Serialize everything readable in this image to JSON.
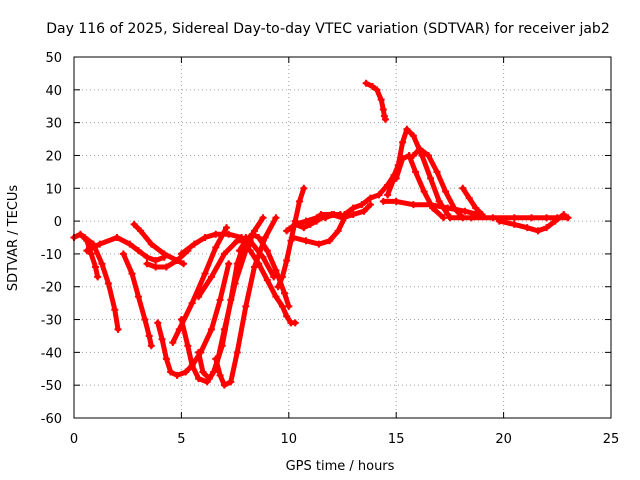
{
  "chart_data": {
    "type": "scatter",
    "title": "Day 116 of 2025, Sidereal Day-to-day VTEC variation (SDTVAR) for receiver jab2",
    "xlabel": "GPS time / hours",
    "ylabel": "SDTVAR / TECUs",
    "xlim": [
      0,
      25
    ],
    "ylim": [
      -60,
      50
    ],
    "xticks": [
      0,
      5,
      10,
      15,
      20,
      25
    ],
    "yticks": [
      -60,
      -50,
      -40,
      -30,
      -20,
      -10,
      0,
      10,
      20,
      30,
      40,
      50
    ],
    "xtick_labels": [
      "0",
      "5",
      "10",
      "15",
      "20",
      "25"
    ],
    "ytick_labels": [
      "-60",
      "-50",
      "-40",
      "-30",
      "-20",
      "-10",
      "0",
      "10",
      "20",
      "30",
      "40",
      "50"
    ],
    "grid": true,
    "marker": "+",
    "color": "#ff0000",
    "series": [
      {
        "name": "arc-1",
        "x": [
          0.0,
          0.3,
          0.6,
          0.8,
          1.0,
          1.1
        ],
        "y": [
          -5,
          -4,
          -6,
          -10,
          -14,
          -17
        ]
      },
      {
        "name": "arc-2",
        "x": [
          0.5,
          0.9,
          1.3,
          1.6,
          1.9,
          2.05
        ],
        "y": [
          -5,
          -7,
          -13,
          -19,
          -27,
          -33
        ]
      },
      {
        "name": "arc-3",
        "x": [
          0.6,
          1.2,
          2.0,
          2.6,
          3.0,
          3.4,
          3.8,
          4.2
        ],
        "y": [
          -9,
          -7,
          -5,
          -7,
          -9,
          -11,
          -12,
          -11
        ]
      },
      {
        "name": "arc-4",
        "x": [
          2.8,
          3.1,
          3.6,
          4.2,
          4.8,
          5.1
        ],
        "y": [
          -1,
          -3,
          -7,
          -10,
          -12,
          -13
        ]
      },
      {
        "name": "arc-5",
        "x": [
          2.3,
          2.7,
          3.0,
          3.3,
          3.5,
          3.6
        ],
        "y": [
          -10,
          -16,
          -23,
          -30,
          -35,
          -38
        ]
      },
      {
        "name": "arc-6",
        "x": [
          3.4,
          3.8,
          4.3,
          4.8,
          5.3
        ],
        "y": [
          -13,
          -14,
          -14,
          -12,
          -9
        ]
      },
      {
        "name": "arc-7",
        "x": [
          3.9,
          4.1,
          4.3,
          4.5,
          4.8,
          5.2,
          5.5,
          5.9,
          6.4,
          6.8,
          7.2
        ],
        "y": [
          -31,
          -36,
          -42,
          -46,
          -47,
          -46,
          -44,
          -40,
          -33,
          -24,
          -13
        ]
      },
      {
        "name": "arc-8",
        "x": [
          5.0,
          5.6,
          6.1,
          6.6,
          7.2,
          7.8,
          8.2
        ],
        "y": [
          -10,
          -7,
          -5,
          -4,
          -4,
          -5,
          -7
        ]
      },
      {
        "name": "arc-9",
        "x": [
          5.0,
          5.3,
          5.5,
          5.8,
          6.2,
          6.5,
          6.9,
          7.3,
          7.6,
          8.0
        ],
        "y": [
          -30,
          -38,
          -44,
          -48,
          -49,
          -46,
          -38,
          -24,
          -13,
          -5
        ]
      },
      {
        "name": "arc-10",
        "x": [
          4.6,
          4.9,
          5.5,
          6.1,
          6.6,
          7.1
        ],
        "y": [
          -37,
          -33,
          -25,
          -16,
          -8,
          -2
        ]
      },
      {
        "name": "arc-11",
        "x": [
          5.8,
          6.0,
          6.3,
          6.6,
          7.0,
          7.5,
          8.0,
          8.4,
          8.8
        ],
        "y": [
          -40,
          -46,
          -48,
          -45,
          -33,
          -19,
          -9,
          -3,
          1
        ]
      },
      {
        "name": "arc-12",
        "x": [
          6.6,
          6.8,
          7.0,
          7.3,
          7.6,
          8.0,
          8.4,
          8.9,
          9.4
        ],
        "y": [
          -42,
          -47,
          -50,
          -49,
          -40,
          -26,
          -14,
          -5,
          1
        ]
      },
      {
        "name": "arc-13",
        "x": [
          5.8,
          6.4,
          7.0,
          7.6,
          8.2,
          8.8,
          9.3
        ],
        "y": [
          -23,
          -17,
          -10,
          -6,
          -6,
          -11,
          -17
        ]
      },
      {
        "name": "arc-14",
        "x": [
          7.7,
          8.0,
          8.3,
          8.6,
          9.0,
          9.4,
          9.8,
          10.0
        ],
        "y": [
          -9,
          -6,
          -4,
          -5,
          -9,
          -15,
          -22,
          -26
        ]
      },
      {
        "name": "arc-15",
        "x": [
          8.2,
          8.6,
          9.0,
          9.4,
          9.7,
          9.9,
          10.1,
          10.3
        ],
        "y": [
          -9,
          -13,
          -18,
          -23,
          -26,
          -29,
          -31,
          -31
        ]
      },
      {
        "name": "arc-16",
        "x": [
          9.5,
          9.7,
          9.9,
          10.1,
          10.3,
          10.5,
          10.7
        ],
        "y": [
          -20,
          -17,
          -12,
          -6,
          0,
          6,
          10
        ]
      },
      {
        "name": "arc-17",
        "x": [
          9.9,
          10.3,
          10.8,
          11.3,
          11.7,
          12.1,
          12.4
        ],
        "y": [
          -3,
          -1,
          0,
          1,
          1,
          2,
          2
        ]
      },
      {
        "name": "arc-18",
        "x": [
          10.2,
          10.8,
          11.4,
          11.9,
          12.3,
          12.6
        ],
        "y": [
          -5,
          -6,
          -7,
          -6,
          -3,
          1
        ]
      },
      {
        "name": "arc-19",
        "x": [
          10.3,
          10.7,
          11.0,
          11.3,
          11.5
        ],
        "y": [
          -1,
          -2,
          -1,
          0,
          1
        ]
      },
      {
        "name": "arc-20",
        "x": [
          11.5,
          12.0,
          12.5,
          13.0,
          13.5,
          13.8
        ],
        "y": [
          2,
          2,
          1,
          2,
          3,
          5
        ]
      },
      {
        "name": "arc-21",
        "x": [
          12.6,
          13.0,
          13.4,
          13.8,
          14.2,
          14.6,
          14.9,
          15.1,
          15.3
        ],
        "y": [
          2,
          4,
          5,
          7,
          8,
          11,
          14,
          17,
          19
        ]
      },
      {
        "name": "arc-22",
        "x": [
          13.6,
          13.9,
          14.1,
          14.3,
          14.4,
          14.45,
          14.5
        ],
        "y": [
          42,
          41,
          40,
          37,
          34,
          32,
          31
        ]
      },
      {
        "name": "arc-23",
        "x": [
          14.6,
          14.9,
          15.1,
          15.3,
          15.5,
          15.8,
          16.2,
          16.6,
          17.0,
          17.4
        ],
        "y": [
          8,
          13,
          17,
          24,
          28,
          26,
          20,
          13,
          6,
          2
        ]
      },
      {
        "name": "arc-24",
        "x": [
          15.0,
          15.3,
          15.6,
          15.9,
          16.3,
          16.7,
          17.2
        ],
        "y": [
          13,
          19,
          20,
          15,
          9,
          4,
          1
        ]
      },
      {
        "name": "arc-25",
        "x": [
          15.8,
          16.1,
          16.5,
          16.9,
          17.3,
          17.7,
          18.1
        ],
        "y": [
          20,
          22,
          20,
          15,
          9,
          4,
          1
        ]
      },
      {
        "name": "arc-26",
        "x": [
          14.4,
          15.0,
          15.8,
          16.6,
          17.4,
          18.2,
          18.8
        ],
        "y": [
          6,
          6,
          5,
          5,
          4,
          3,
          2
        ]
      },
      {
        "name": "arc-27",
        "x": [
          18.1,
          18.4,
          18.7,
          19.0
        ],
        "y": [
          10,
          7,
          4,
          2
        ]
      },
      {
        "name": "arc-28",
        "x": [
          17.5,
          18.5,
          19.5,
          20.5,
          21.3,
          22.0,
          22.5,
          23.0
        ],
        "y": [
          1,
          1,
          1,
          1,
          1,
          1,
          1,
          1
        ]
      },
      {
        "name": "arc-29",
        "x": [
          19.8,
          20.5,
          21.1,
          21.6,
          22.0,
          22.4,
          22.8
        ],
        "y": [
          0,
          -1,
          -2,
          -3,
          -2,
          0,
          2
        ]
      }
    ]
  }
}
